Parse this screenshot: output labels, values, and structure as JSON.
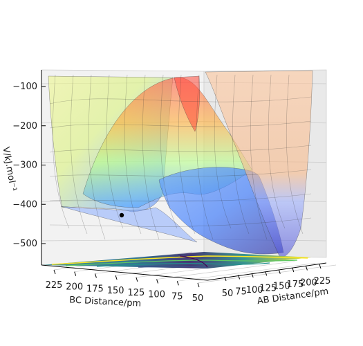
{
  "chart_data": {
    "type": "surface",
    "projection": "3d",
    "title": "",
    "xlabel": "AB Distance/pm",
    "ylabel": "BC Distance/pm",
    "zlabel": "V/kJ.mol⁻¹",
    "x_ticks": [
      50,
      75,
      100,
      125,
      150,
      175,
      200,
      225
    ],
    "y_ticks": [
      225,
      200,
      175,
      150,
      125,
      100,
      75,
      50
    ],
    "z_ticks": [
      -100,
      -200,
      -300,
      -400,
      -500
    ],
    "xlim": [
      50,
      240
    ],
    "ylim": [
      40,
      240
    ],
    "zlim": [
      -560,
      -80
    ],
    "surface_colormap": "jet",
    "contour_colormap": "viridis",
    "surface_alpha": 0.5,
    "grid": true,
    "marker": {
      "x": 230,
      "y": 200,
      "z": -432,
      "color": "#000000"
    }
  }
}
